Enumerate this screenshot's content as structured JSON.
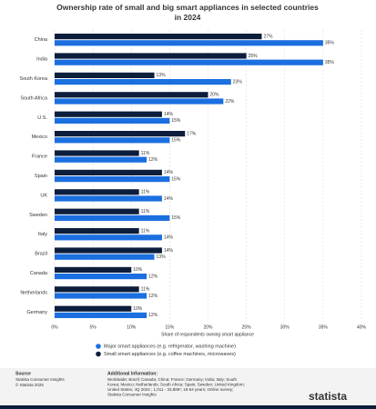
{
  "chart_data": {
    "type": "bar",
    "orientation": "horizontal",
    "title": "Ownership rate of small and big smart appliances in selected countries in 2024",
    "x_label": "Share of respondents owning smart appliance",
    "categories": [
      "China",
      "India",
      "South Korea",
      "South Africa",
      "U.S.",
      "Mexico",
      "France",
      "Spain",
      "UK",
      "Sweden",
      "Italy",
      "Brazil",
      "Canada",
      "Netherlands",
      "Germany"
    ],
    "series": [
      {
        "name": "Major smart appliances (e.g. refrigerator, washing machine)",
        "color": "#1b6fe0",
        "values": [
          35,
          35,
          23,
          22,
          15,
          15,
          12,
          15,
          14,
          15,
          14,
          13,
          12,
          12,
          12
        ],
        "value_labels": [
          "35%",
          "35%",
          "23%",
          "22%",
          "15%",
          "15%",
          "12%",
          "15%",
          "14%",
          "15%",
          "14%",
          "13%",
          "12%",
          "12%",
          "12%"
        ]
      },
      {
        "name": "Small smart appliances (e.g. coffee machines, microwaves)",
        "color": "#0c1e3c",
        "values": [
          27,
          25,
          13,
          20,
          14,
          17,
          11,
          14,
          11,
          11,
          11,
          14,
          10,
          11,
          10
        ],
        "value_labels": [
          "27%",
          "25%",
          "13%",
          "20%",
          "14%",
          "17%",
          "11%",
          "14%",
          "11%",
          "11%",
          "11%",
          "14%",
          "10%",
          "11%",
          "10%"
        ]
      }
    ],
    "xlim": [
      0,
      40
    ],
    "xticks": [
      {
        "value": 0,
        "label": "0%"
      },
      {
        "value": 5,
        "label": "5%"
      },
      {
        "value": 10,
        "label": "10%"
      },
      {
        "value": 15,
        "label": "15%"
      },
      {
        "value": 20,
        "label": "20%"
      },
      {
        "value": 25,
        "label": "25%"
      },
      {
        "value": 30,
        "label": "30%"
      },
      {
        "value": 35,
        "label": "35%"
      },
      {
        "value": 40,
        "label": "40%"
      }
    ],
    "grid": true
  },
  "footer": {
    "source_title": "Source",
    "source_lines": [
      "Statista Consumer Insights",
      "© Statista 2025"
    ],
    "info_title": "Additional Information:",
    "info_text": "Worldwide; Brazil; Canada; China; France; Germany; India; Italy; South Korea; Mexico; Netherlands; South Africa; Spain; Sweden; United Kingdom; United States; 4Q 2024 ; 1,011 - 33,886¹; 18-64 years; Online survey; Statista Consumer Insights",
    "logo": "statista"
  }
}
